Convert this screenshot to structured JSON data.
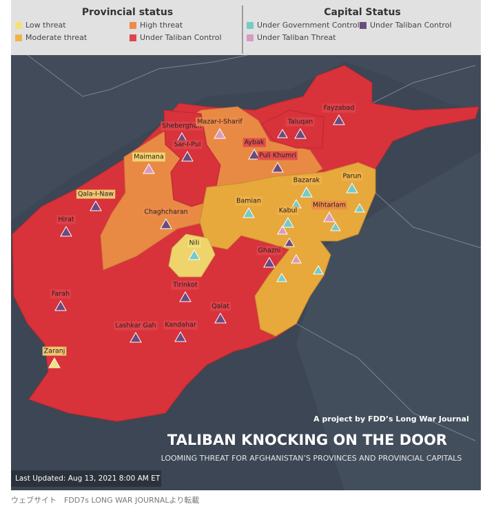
{
  "legend": {
    "provincial": {
      "title": "Provincial status",
      "items": [
        {
          "label": "Low threat",
          "color": "#f6e07a"
        },
        {
          "label": "High threat",
          "color": "#ee8a4a"
        },
        {
          "label": "Moderate threat",
          "color": "#f0b34c"
        },
        {
          "label": "Under Taliban Control",
          "color": "#e2444c"
        }
      ]
    },
    "capital": {
      "title": "Capital Status",
      "items": [
        {
          "label": "Under Government Control",
          "color": "#74cbc8"
        },
        {
          "label": "Under Taliban Control",
          "color": "#6b4b7e"
        },
        {
          "label": "Under Taliban Threat",
          "color": "#d69bbf"
        }
      ]
    }
  },
  "cities": [
    {
      "label": "Fayzabad",
      "box": "#e2444c",
      "color": "#6b4b7e"
    },
    {
      "label": "Taluqan",
      "box": "#e2444c",
      "color": "#6b4b7e"
    },
    {
      "label": "Sheberghan",
      "box": "#e2444c",
      "color": "#6b4b7e"
    },
    {
      "label": "Mazar-I-Sharif",
      "box": "#ee8a4a",
      "color": "#d69bbf"
    },
    {
      "label": "Aybak",
      "box": "#e2444c",
      "color": "#6b4b7e"
    },
    {
      "label": "Sar-I-Pul",
      "box": "#e2444c",
      "color": "#6b4b7e"
    },
    {
      "label": "Puli Khumri",
      "box": "#e2444c",
      "color": "#6b4b7e"
    },
    {
      "label": "Maimana",
      "box": "#f6e07a",
      "color": "#d69bbf"
    },
    {
      "label": "Bazarak",
      "box": "#f0b34c",
      "color": "#74cbc8"
    },
    {
      "label": "Parun",
      "box": "#f0b34c",
      "color": "#74cbc8"
    },
    {
      "label": "Qala-I-Naw",
      "box": "#f6e07a",
      "color": "#6b4b7e"
    },
    {
      "label": "Bamian",
      "box": "#f0b34c",
      "color": "#74cbc8"
    },
    {
      "label": "Kabul",
      "box": "#f0b34c",
      "color": "#74cbc8"
    },
    {
      "label": "Mihtarlam",
      "box": "#ee8a4a",
      "color": "#d69bbf"
    },
    {
      "label": "Hirat",
      "box": "#e2444c",
      "color": "#6b4b7e"
    },
    {
      "label": "Chaghcharan",
      "box": "#ee8a4a",
      "color": "#6b4b7e"
    },
    {
      "label": "Nili",
      "box": "#f6e07a",
      "color": "#74cbc8"
    },
    {
      "label": "Ghazni",
      "box": "#e2444c",
      "color": "#6b4b7e"
    },
    {
      "label": "Tirinkot",
      "box": "#e2444c",
      "color": "#6b4b7e"
    },
    {
      "label": "Farah",
      "box": "#e2444c",
      "color": "#6b4b7e"
    },
    {
      "label": "Qalat",
      "box": "#e2444c",
      "color": "#6b4b7e"
    },
    {
      "label": "Lashkar Gah",
      "box": "#e2444c",
      "color": "#6b4b7e"
    },
    {
      "label": "Kandahar",
      "box": "#e2444c",
      "color": "#6b4b7e"
    },
    {
      "label": "Zaranj",
      "box": "#f6e07a",
      "color": "#f6e07a"
    }
  ],
  "credit": "A project by FDD’s Long War Journal",
  "title": "TALIBAN KNOCKING ON THE  DOOR",
  "subtitle": "LOOMING THREAT FOR AFGHANISTAN’S PROVINCES AND PROVINCIAL CAPITALS",
  "updated": "Last Updated: Aug 13, 2021 8:00 AM ET",
  "caption": "ウェブサイト　FDD7s LONG WAR JOURNALより転載"
}
